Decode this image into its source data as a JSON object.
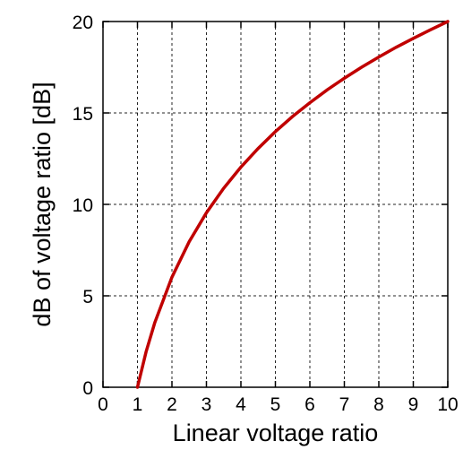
{
  "chart_data": {
    "type": "line",
    "title": "",
    "xlabel": "Linear voltage ratio",
    "ylabel": "dB of voltage ratio [dB]",
    "xlim": [
      0,
      10
    ],
    "ylim": [
      0,
      20
    ],
    "x_ticks": [
      "0",
      "1",
      "2",
      "3",
      "4",
      "5",
      "6",
      "7",
      "8",
      "9",
      "10"
    ],
    "y_ticks": [
      "0",
      "5",
      "10",
      "15",
      "20"
    ],
    "grid": true,
    "series": [
      {
        "color": "#c00000",
        "x": [
          1,
          1.25,
          1.5,
          2,
          2.5,
          3,
          3.5,
          4,
          4.5,
          5,
          5.5,
          6,
          6.5,
          7,
          7.5,
          8,
          8.5,
          9,
          9.5,
          10
        ],
        "y": [
          0,
          1.94,
          3.52,
          6.02,
          7.96,
          9.54,
          10.88,
          12.04,
          13.06,
          13.98,
          14.81,
          15.56,
          16.26,
          16.9,
          17.5,
          18.06,
          18.59,
          19.08,
          19.55,
          20
        ]
      }
    ]
  }
}
